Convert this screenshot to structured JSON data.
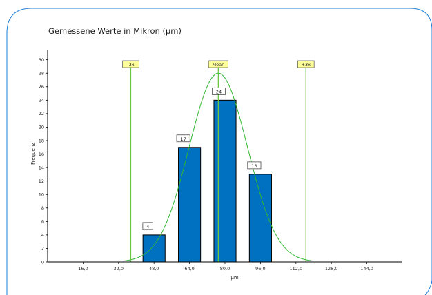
{
  "chart_data": {
    "type": "bar",
    "title": "Gemessene Werte in Mikron (µm)",
    "xlabel": "µm",
    "ylabel": "Frequenz",
    "x_ticks": [
      "16,0",
      "32,0",
      "48,0",
      "64,0",
      "80,0",
      "96,0",
      "112,0",
      "128,0",
      "144,0"
    ],
    "x_tick_values": [
      16,
      32,
      48,
      64,
      80,
      96,
      112,
      128,
      144
    ],
    "y_ticks": [
      "0",
      "2",
      "4",
      "6",
      "8",
      "10",
      "12",
      "14",
      "16",
      "18",
      "20",
      "22",
      "24",
      "26",
      "28",
      "30"
    ],
    "xlim": [
      0,
      160
    ],
    "ylim": [
      0,
      31.5
    ],
    "bars": [
      {
        "x": 48,
        "value": 4,
        "label": "4"
      },
      {
        "x": 64,
        "value": 17,
        "label": "17"
      },
      {
        "x": 80,
        "value": 24,
        "label": "24"
      },
      {
        "x": 96,
        "value": 13,
        "label": "13"
      }
    ],
    "bar_width": 10,
    "distribution_curve": {
      "mean": 77,
      "sigma": 13.2,
      "peak": 28
    },
    "reference_lines": [
      {
        "label": "-3x",
        "x": 37.5
      },
      {
        "label": "Mean",
        "x": 77
      },
      {
        "label": "+3x",
        "x": 116.5
      }
    ],
    "grid": false,
    "colors": {
      "bar": "#0070C0",
      "curve": "#33b633",
      "reference_line": "#6cc640",
      "reference_label_bg": "#ffff99",
      "frame": "#1e7fd8"
    }
  }
}
